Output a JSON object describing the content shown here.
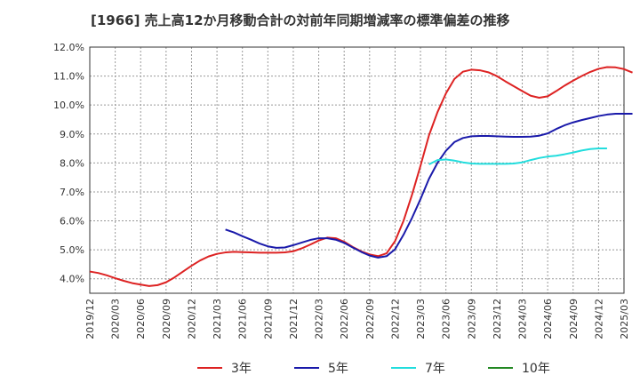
{
  "chart_data": {
    "type": "line",
    "title": "[1966]  売上高12か月移動合計の対前年同期増減率の標準偏差の推移",
    "xlabel": "",
    "ylabel": "",
    "ylim": [
      3.5,
      12.0
    ],
    "y_ticks": [
      4.0,
      5.0,
      6.0,
      7.0,
      8.0,
      9.0,
      10.0,
      11.0,
      12.0
    ],
    "y_tick_labels": [
      "4.0%",
      "5.0%",
      "6.0%",
      "7.0%",
      "8.0%",
      "9.0%",
      "10.0%",
      "11.0%",
      "12.0%"
    ],
    "x_tick_labels": [
      "2019/12",
      "2020/03",
      "2020/06",
      "2020/09",
      "2020/12",
      "2021/03",
      "2021/06",
      "2021/09",
      "2021/12",
      "2022/03",
      "2022/06",
      "2022/09",
      "2022/12",
      "2023/03",
      "2023/06",
      "2023/09",
      "2023/12",
      "2024/03",
      "2024/06",
      "2024/09",
      "2024/12",
      "2025/03"
    ],
    "x_start": "2019/12",
    "grid": true,
    "legend_position": "bottom",
    "series": [
      {
        "name": "3年",
        "color": "#dd2222",
        "start_index": 0,
        "values": [
          4.25,
          4.2,
          4.12,
          4.02,
          3.93,
          3.85,
          3.8,
          3.75,
          3.78,
          3.88,
          4.05,
          4.25,
          4.45,
          4.63,
          4.77,
          4.86,
          4.91,
          4.93,
          4.92,
          4.91,
          4.9,
          4.9,
          4.9,
          4.91,
          4.95,
          5.05,
          5.18,
          5.32,
          5.42,
          5.4,
          5.28,
          5.1,
          4.95,
          4.84,
          4.78,
          4.88,
          5.3,
          6.0,
          6.9,
          7.9,
          8.95,
          9.75,
          10.4,
          10.9,
          11.15,
          11.22,
          11.2,
          11.13,
          11.0,
          10.82,
          10.65,
          10.48,
          10.32,
          10.25,
          10.3,
          10.48,
          10.67,
          10.84,
          11.0,
          11.14,
          11.25,
          11.31,
          11.3,
          11.24,
          11.12
        ]
      },
      {
        "name": "5年",
        "color": "#1a1aaa",
        "start_index": 16,
        "values": [
          5.7,
          5.6,
          5.47,
          5.35,
          5.22,
          5.12,
          5.07,
          5.08,
          5.16,
          5.25,
          5.34,
          5.4,
          5.4,
          5.35,
          5.24,
          5.08,
          4.93,
          4.8,
          4.73,
          4.78,
          5.02,
          5.52,
          6.1,
          6.75,
          7.45,
          8.0,
          8.42,
          8.72,
          8.86,
          8.92,
          8.93,
          8.93,
          8.92,
          8.91,
          8.9,
          8.9,
          8.91,
          8.94,
          9.02,
          9.17,
          9.3,
          9.4,
          9.48,
          9.55,
          9.62,
          9.67,
          9.7,
          9.7,
          9.7
        ]
      },
      {
        "name": "7年",
        "color": "#22dddd",
        "start_index": 40,
        "values": [
          7.95,
          8.1,
          8.12,
          8.08,
          8.02,
          7.98,
          7.97,
          7.97,
          7.97,
          7.97,
          7.98,
          8.02,
          8.1,
          8.17,
          8.22,
          8.25,
          8.3,
          8.36,
          8.43,
          8.48,
          8.5,
          8.5
        ]
      },
      {
        "name": "10年",
        "color": "#228822",
        "start_index": 0,
        "values": []
      }
    ]
  }
}
